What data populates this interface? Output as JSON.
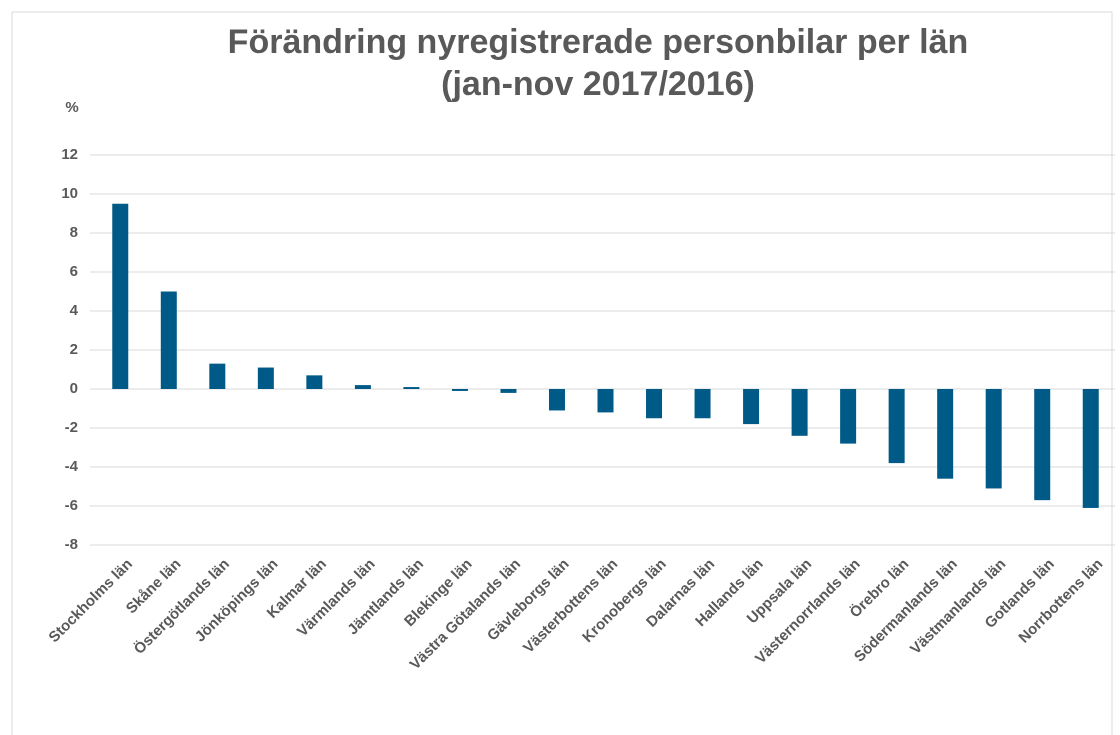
{
  "chart_data": {
    "type": "bar",
    "title": "Förändring nyregistrerade personbilar per län",
    "subtitle": "(jan-nov 2017/2016)",
    "y_label": "%",
    "categories": [
      "Stockholms län",
      "Skåne län",
      "Östergötlands län",
      "Jönköpings län",
      "Kalmar län",
      "Värmlands län",
      "Jämtlands län",
      "Blekinge län",
      "Västra Götalands län",
      "Gävleborgs län",
      "Västerbottens län",
      "Kronobergs län",
      "Dalarnas län",
      "Hallands län",
      "Uppsala län",
      "Västernorrlands län",
      "Örebro län",
      "Södermanlands län",
      "Västmanlands län",
      "Gotlands län",
      "Norrbottens län"
    ],
    "values": [
      9.5,
      5.0,
      1.3,
      1.1,
      0.7,
      0.2,
      0.1,
      -0.1,
      -0.2,
      -1.1,
      -1.2,
      -1.5,
      -1.5,
      -1.8,
      -2.4,
      -2.8,
      -3.8,
      -4.6,
      -5.1,
      -5.7,
      -6.1
    ],
    "color": "#005a87",
    "ylim": [
      -8,
      12
    ],
    "yticks": [
      -8,
      -6,
      -4,
      -2,
      0,
      2,
      4,
      6,
      8,
      10,
      12
    ],
    "grid": true
  }
}
